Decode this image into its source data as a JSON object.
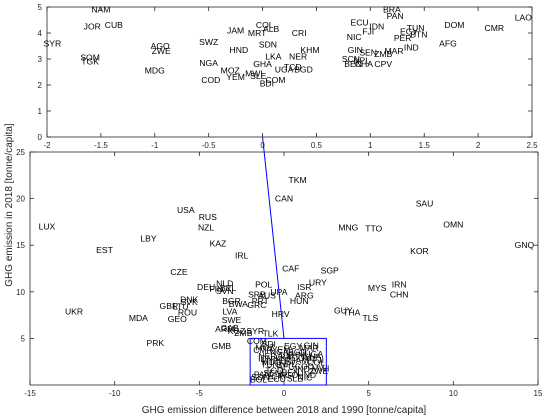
{
  "chart_data": [
    {
      "type": "scatter",
      "marker": "country-code-text",
      "xlim": [
        -2,
        2.5
      ],
      "ylim": [
        0,
        5
      ],
      "xticks": [
        "-2",
        "-1.5",
        "-1",
        "-0.5",
        "0",
        "0.5",
        "1",
        "1.5",
        "2",
        "2.5"
      ],
      "yticks": [
        "0",
        "1",
        "2",
        "3",
        "4",
        "5"
      ],
      "xlabel": "",
      "ylabel": "",
      "grid": false,
      "points": [
        {
          "label": "NAM",
          "x": -1.5,
          "y": 4.9
        },
        {
          "label": "BRA",
          "x": 1.2,
          "y": 4.9
        },
        {
          "label": "LAO",
          "x": 2.42,
          "y": 4.6
        },
        {
          "label": "PAN",
          "x": 1.23,
          "y": 4.65
        },
        {
          "label": "JOR",
          "x": -1.58,
          "y": 4.25
        },
        {
          "label": "CUB",
          "x": -1.38,
          "y": 4.3
        },
        {
          "label": "COL",
          "x": 0.02,
          "y": 4.3
        },
        {
          "label": "ECU",
          "x": 0.9,
          "y": 4.4
        },
        {
          "label": "DOM",
          "x": 1.78,
          "y": 4.3
        },
        {
          "label": "CMR",
          "x": 2.15,
          "y": 4.2
        },
        {
          "label": "IDN",
          "x": 1.06,
          "y": 4.25
        },
        {
          "label": "TUN",
          "x": 1.42,
          "y": 4.2
        },
        {
          "label": "ALB",
          "x": 0.08,
          "y": 4.15
        },
        {
          "label": "JAM",
          "x": -0.25,
          "y": 4.1
        },
        {
          "label": "MRT",
          "x": -0.05,
          "y": 4.0
        },
        {
          "label": "EGY",
          "x": 1.36,
          "y": 4.05
        },
        {
          "label": "BTN",
          "x": 1.45,
          "y": 3.95
        },
        {
          "label": "FJI",
          "x": 0.98,
          "y": 4.05
        },
        {
          "label": "CRI",
          "x": 0.34,
          "y": 4.0
        },
        {
          "label": "PER",
          "x": 1.3,
          "y": 3.8
        },
        {
          "label": "NIC",
          "x": 0.85,
          "y": 3.85
        },
        {
          "label": "SYR",
          "x": -1.95,
          "y": 3.6
        },
        {
          "label": "SWZ",
          "x": -0.5,
          "y": 3.65
        },
        {
          "label": "AFG",
          "x": 1.72,
          "y": 3.6
        },
        {
          "label": "AGO",
          "x": -0.95,
          "y": 3.5
        },
        {
          "label": "SDN",
          "x": 0.05,
          "y": 3.55
        },
        {
          "label": "IND",
          "x": 1.38,
          "y": 3.45
        },
        {
          "label": "ZWE",
          "x": -0.94,
          "y": 3.3
        },
        {
          "label": "HND",
          "x": -0.22,
          "y": 3.35
        },
        {
          "label": "KHM",
          "x": 0.44,
          "y": 3.35
        },
        {
          "label": "GIN",
          "x": 0.86,
          "y": 3.35
        },
        {
          "label": "SEN",
          "x": 0.98,
          "y": 3.25
        },
        {
          "label": "MAR",
          "x": 1.22,
          "y": 3.3
        },
        {
          "label": "ZMB",
          "x": 1.12,
          "y": 3.2
        },
        {
          "label": "SOM",
          "x": -1.6,
          "y": 3.05
        },
        {
          "label": "TGK",
          "x": -1.6,
          "y": 2.9
        },
        {
          "label": "LKA",
          "x": 0.1,
          "y": 3.1
        },
        {
          "label": "NER",
          "x": 0.33,
          "y": 3.1
        },
        {
          "label": "SCN",
          "x": 0.82,
          "y": 3.0
        },
        {
          "label": "NPL",
          "x": 0.92,
          "y": 2.95
        },
        {
          "label": "NGA",
          "x": -0.5,
          "y": 2.85
        },
        {
          "label": "GHA",
          "x": 0.0,
          "y": 2.8
        },
        {
          "label": "BEN",
          "x": 0.84,
          "y": 2.8
        },
        {
          "label": "CHA",
          "x": 0.94,
          "y": 2.8
        },
        {
          "label": "CPV",
          "x": 1.12,
          "y": 2.8
        },
        {
          "label": "TCD",
          "x": 0.28,
          "y": 2.7
        },
        {
          "label": "UGA",
          "x": 0.2,
          "y": 2.6
        },
        {
          "label": "BGD",
          "x": 0.38,
          "y": 2.6
        },
        {
          "label": "MDG",
          "x": -1.0,
          "y": 2.55
        },
        {
          "label": "MOZ",
          "x": -0.3,
          "y": 2.55
        },
        {
          "label": "MWI",
          "x": -0.08,
          "y": 2.45
        },
        {
          "label": "YEM",
          "x": -0.25,
          "y": 2.3
        },
        {
          "label": "SLE",
          "x": -0.04,
          "y": 2.35
        },
        {
          "label": "COM",
          "x": 0.12,
          "y": 2.2
        },
        {
          "label": "COD",
          "x": -0.48,
          "y": 2.2
        },
        {
          "label": "BDI",
          "x": 0.04,
          "y": 2.05
        }
      ]
    },
    {
      "type": "scatter",
      "marker": "country-code-text",
      "xlim": [
        -15,
        15
      ],
      "ylim": [
        0,
        25
      ],
      "xticks": [
        "-15",
        "-10",
        "-5",
        "0",
        "5",
        "10",
        "15"
      ],
      "yticks": [
        "5",
        "10",
        "15",
        "20",
        "25"
      ],
      "xlabel": "GHG emission difference between 2018 and 1990 [tonne/capita]",
      "ylabel": "",
      "grid": false,
      "zoom_box": {
        "x": [
          -2,
          2.5
        ],
        "y": [
          0,
          5
        ]
      },
      "points": [
        {
          "label": "TKM",
          "x": 0.8,
          "y": 22.0
        },
        {
          "label": "CAN",
          "x": 0.0,
          "y": 20.0
        },
        {
          "label": "SAU",
          "x": 8.3,
          "y": 19.5
        },
        {
          "label": "USA",
          "x": -5.8,
          "y": 18.8
        },
        {
          "label": "RUS",
          "x": -4.5,
          "y": 18.0
        },
        {
          "label": "OMN",
          "x": 10.0,
          "y": 17.2
        },
        {
          "label": "LUX",
          "x": -14.0,
          "y": 17.0
        },
        {
          "label": "NZL",
          "x": -4.6,
          "y": 16.9
        },
        {
          "label": "MNG",
          "x": 3.8,
          "y": 16.9
        },
        {
          "label": "TTO",
          "x": 5.3,
          "y": 16.8
        },
        {
          "label": "LBY",
          "x": -8.0,
          "y": 15.7
        },
        {
          "label": "KAZ",
          "x": -3.9,
          "y": 15.2
        },
        {
          "label": "GNQ",
          "x": 14.2,
          "y": 15.0
        },
        {
          "label": "EST",
          "x": -10.6,
          "y": 14.5
        },
        {
          "label": "KOR",
          "x": 8.0,
          "y": 14.4
        },
        {
          "label": "IRL",
          "x": -2.5,
          "y": 13.9
        },
        {
          "label": "CAF",
          "x": 0.4,
          "y": 12.5
        },
        {
          "label": "SGP",
          "x": 2.7,
          "y": 12.3
        },
        {
          "label": "CZE",
          "x": -6.2,
          "y": 12.1
        },
        {
          "label": "URY",
          "x": 2.0,
          "y": 11.0
        },
        {
          "label": "NLD",
          "x": -3.5,
          "y": 10.9
        },
        {
          "label": "POL",
          "x": -1.2,
          "y": 10.8
        },
        {
          "label": "IRN",
          "x": 6.8,
          "y": 10.8
        },
        {
          "label": "DEU",
          "x": -4.6,
          "y": 10.5
        },
        {
          "label": "BEL",
          "x": -3.3,
          "y": 10.4
        },
        {
          "label": "ISR",
          "x": 1.2,
          "y": 10.5
        },
        {
          "label": "MYS",
          "x": 5.5,
          "y": 10.4
        },
        {
          "label": "FIN",
          "x": -4.0,
          "y": 10.3
        },
        {
          "label": "SVN",
          "x": -3.5,
          "y": 10.1
        },
        {
          "label": "UPA",
          "x": -0.3,
          "y": 10.0
        },
        {
          "label": "CHN",
          "x": 6.8,
          "y": 9.7
        },
        {
          "label": "SRB",
          "x": -1.6,
          "y": 9.7
        },
        {
          "label": "AUS",
          "x": -1.0,
          "y": 9.6
        },
        {
          "label": "ARG",
          "x": 1.2,
          "y": 9.6
        },
        {
          "label": "DNK",
          "x": -5.6,
          "y": 9.2
        },
        {
          "label": "BGR",
          "x": -3.1,
          "y": 9.0
        },
        {
          "label": "PRT",
          "x": -1.4,
          "y": 9.0
        },
        {
          "label": "HUN",
          "x": 0.9,
          "y": 9.0
        },
        {
          "label": "SVK",
          "x": -5.6,
          "y": 8.9
        },
        {
          "label": "BWA",
          "x": -2.7,
          "y": 8.7
        },
        {
          "label": "GRC",
          "x": -1.6,
          "y": 8.6
        },
        {
          "label": "GBR",
          "x": -6.8,
          "y": 8.5
        },
        {
          "label": "LTU",
          "x": -6.1,
          "y": 8.4
        },
        {
          "label": "ROU",
          "x": -5.7,
          "y": 7.8
        },
        {
          "label": "LVA",
          "x": -3.2,
          "y": 7.9
        },
        {
          "label": "UKR",
          "x": -12.4,
          "y": 7.9
        },
        {
          "label": "GUY",
          "x": 3.5,
          "y": 8.0
        },
        {
          "label": "THA",
          "x": 4.0,
          "y": 7.8
        },
        {
          "label": "MDA",
          "x": -8.6,
          "y": 7.2
        },
        {
          "label": "GEO",
          "x": -6.3,
          "y": 7.1
        },
        {
          "label": "TLS",
          "x": 5.1,
          "y": 7.2
        },
        {
          "label": "SWE",
          "x": -3.1,
          "y": 7.0
        },
        {
          "label": "HRV",
          "x": -0.2,
          "y": 7.6
        },
        {
          "label": "KGZ",
          "x": -2.8,
          "y": 5.8
        },
        {
          "label": "GAB",
          "x": -3.2,
          "y": 6.1
        },
        {
          "label": "ARM",
          "x": -3.5,
          "y": 6.0
        },
        {
          "label": "ZMB",
          "x": -2.4,
          "y": 5.6
        },
        {
          "label": "SYR",
          "x": -1.7,
          "y": 5.8
        },
        {
          "label": "PRK",
          "x": -7.6,
          "y": 4.5
        },
        {
          "label": "GMB",
          "x": -3.7,
          "y": 4.2
        },
        {
          "label": "COM",
          "x": -1.6,
          "y": 4.7
        },
        {
          "label": "TLK",
          "x": -0.8,
          "y": 5.5
        },
        {
          "label": "BDI",
          "x": -0.9,
          "y": 4.4
        }
      ]
    }
  ],
  "left_ylabel": "GHG emission in 2018 [tonne/capita]",
  "colors": {
    "axes": "#262626",
    "zoom_box": "#0000ff",
    "text": "#000000"
  }
}
